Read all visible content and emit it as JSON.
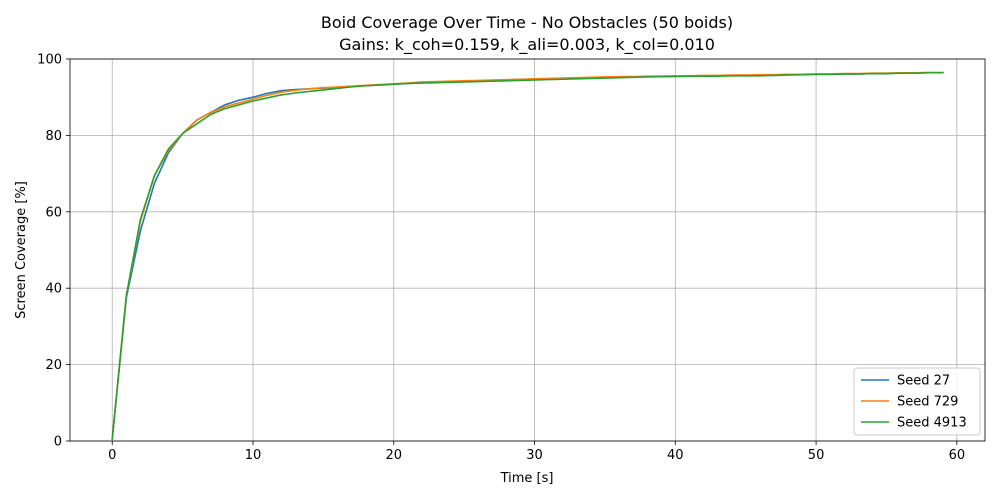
{
  "chart_data": {
    "type": "line",
    "title": "Boid Coverage Over Time - No Obstacles  (50 boids)",
    "subtitle": "Gains: k_coh=0.159, k_ali=0.003, k_col=0.010",
    "xlabel": "Time [s]",
    "ylabel": "Screen Coverage [%]",
    "xlim": [
      -3,
      62
    ],
    "ylim": [
      0,
      100
    ],
    "xticks": [
      0,
      10,
      20,
      30,
      40,
      50,
      60
    ],
    "yticks": [
      0,
      20,
      40,
      60,
      80,
      100
    ],
    "grid": true,
    "legend_position": "lower-right",
    "x": [
      0,
      1,
      2,
      3,
      4,
      5,
      6,
      7,
      8,
      9,
      10,
      11,
      12,
      13,
      14,
      15,
      16,
      17,
      18,
      19,
      20,
      21,
      22,
      23,
      24,
      25,
      26,
      27,
      28,
      29,
      30,
      31,
      32,
      33,
      34,
      35,
      36,
      37,
      38,
      39,
      40,
      41,
      42,
      43,
      44,
      45,
      46,
      47,
      48,
      49,
      50,
      51,
      52,
      53,
      54,
      55,
      56,
      57,
      58,
      59
    ],
    "series": [
      {
        "name": "Seed 27",
        "color": "#1f77b4",
        "values": [
          0.5,
          37.5,
          55.0,
          67.5,
          75.5,
          80.5,
          84.0,
          86.0,
          88.0,
          89.2,
          90.0,
          91.0,
          91.7,
          92.0,
          92.2,
          92.4,
          92.6,
          92.8,
          93.0,
          93.2,
          93.4,
          93.6,
          93.8,
          93.9,
          94.0,
          94.1,
          94.2,
          94.3,
          94.4,
          94.5,
          94.6,
          94.7,
          94.8,
          94.9,
          95.0,
          95.1,
          95.2,
          95.3,
          95.4,
          95.4,
          95.5,
          95.5,
          95.6,
          95.6,
          95.7,
          95.7,
          95.8,
          95.8,
          95.9,
          95.9,
          96.0,
          96.0,
          96.1,
          96.1,
          96.2,
          96.2,
          96.3,
          96.3,
          96.4,
          96.4
        ]
      },
      {
        "name": "Seed 729",
        "color": "#ff7f0e",
        "values": [
          0.5,
          38.0,
          57.5,
          69.5,
          76.0,
          80.5,
          84.0,
          86.0,
          87.5,
          88.5,
          89.5,
          90.5,
          91.3,
          91.8,
          92.2,
          92.5,
          92.7,
          92.9,
          93.1,
          93.3,
          93.5,
          93.7,
          94.0,
          94.1,
          94.2,
          94.3,
          94.4,
          94.5,
          94.6,
          94.7,
          94.8,
          94.9,
          95.0,
          95.1,
          95.2,
          95.3,
          95.4,
          95.4,
          95.5,
          95.5,
          95.6,
          95.6,
          95.7,
          95.7,
          95.8,
          95.8,
          95.9,
          95.9,
          96.0,
          96.0,
          96.1,
          96.1,
          96.2,
          96.2,
          96.3,
          96.3,
          96.4,
          96.4,
          96.5,
          96.5
        ]
      },
      {
        "name": "Seed 4913",
        "color": "#2ca02c",
        "values": [
          0.5,
          38.0,
          58.0,
          69.5,
          76.5,
          80.5,
          83.0,
          85.5,
          87.0,
          88.0,
          89.0,
          89.8,
          90.6,
          91.1,
          91.5,
          91.9,
          92.3,
          92.7,
          93.0,
          93.2,
          93.4,
          93.6,
          93.7,
          93.8,
          93.9,
          94.0,
          94.1,
          94.2,
          94.3,
          94.4,
          94.5,
          94.6,
          94.7,
          94.8,
          94.9,
          95.0,
          95.1,
          95.2,
          95.3,
          95.4,
          95.4,
          95.5,
          95.5,
          95.5,
          95.6,
          95.6,
          95.6,
          95.7,
          95.8,
          95.9,
          96.0,
          96.0,
          96.1,
          96.1,
          96.2,
          96.2,
          96.3,
          96.3,
          96.4,
          96.4
        ]
      }
    ]
  }
}
